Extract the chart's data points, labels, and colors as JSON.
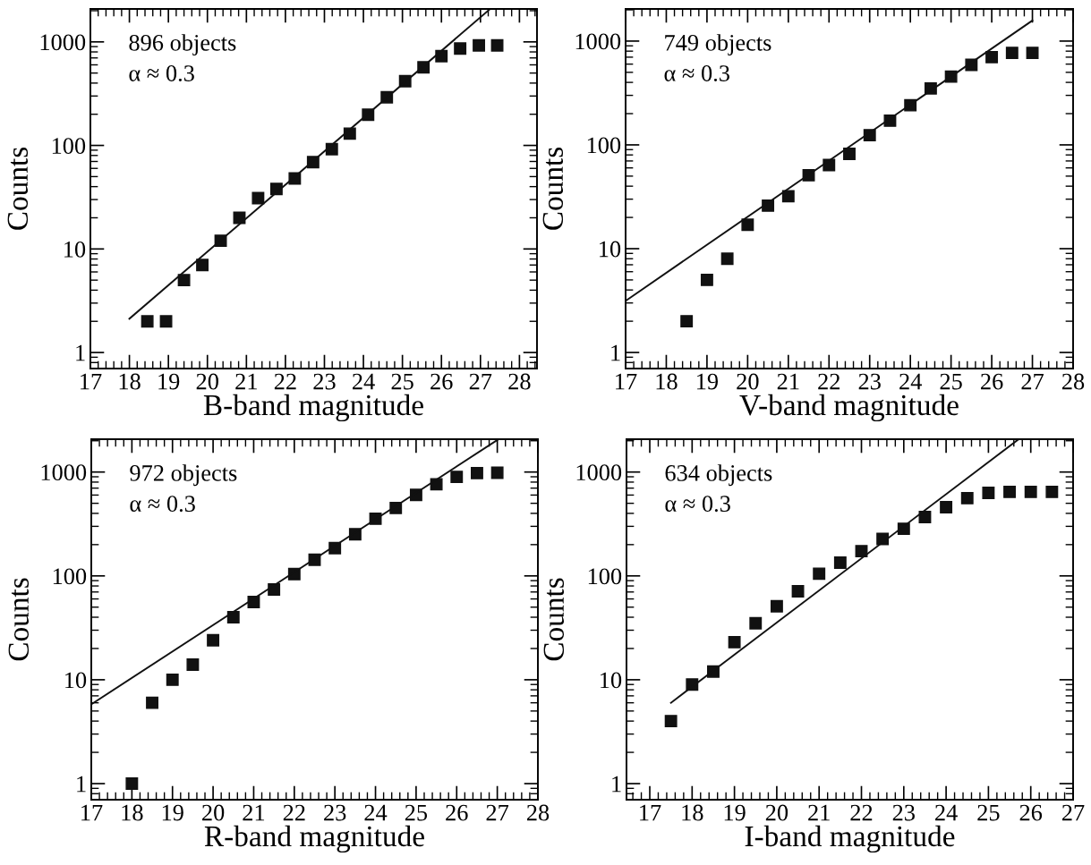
{
  "chart_data": [
    {
      "type": "scatter",
      "xlabel": "B-band magnitude",
      "ylabel": "Counts",
      "annotations": [
        "896 objects",
        "α ≈ 0.3"
      ],
      "log": "y",
      "xlim": [
        17,
        28.45
      ],
      "ylim": [
        0.7,
        2080
      ],
      "xticks": [
        17,
        18,
        19,
        20,
        21,
        22,
        23,
        24,
        25,
        26,
        27,
        28
      ],
      "yticks": [
        1,
        10,
        100,
        1000
      ],
      "grid": false,
      "legend": false,
      "series": [
        {
          "marker": "square",
          "color": "#111111",
          "x": [
            18.46,
            18.94,
            19.4,
            19.87,
            20.34,
            20.82,
            21.3,
            21.77,
            22.24,
            22.71,
            23.19,
            23.65,
            24.12,
            24.6,
            25.07,
            25.54,
            26.0,
            26.48,
            26.96,
            27.43
          ],
          "values": [
            2,
            2,
            5,
            7,
            12,
            20,
            31,
            38,
            48,
            69,
            92,
            130,
            198,
            292,
            417,
            568,
            728,
            863,
            925,
            925
          ]
        },
        {
          "type": "line",
          "color": "#111111",
          "x": [
            18.0,
            27.23
          ],
          "values": [
            2.12,
            2050
          ]
        }
      ]
    },
    {
      "type": "scatter",
      "xlabel": "V-band magnitude",
      "ylabel": "Counts",
      "annotations": [
        "749 objects",
        "α ≈ 0.3"
      ],
      "log": "y",
      "xlim": [
        17,
        28
      ],
      "ylim": [
        0.7,
        2040
      ],
      "xticks": [
        17,
        18,
        19,
        20,
        21,
        22,
        23,
        24,
        25,
        26,
        27,
        28
      ],
      "yticks": [
        1,
        10,
        100,
        1000
      ],
      "grid": false,
      "legend": false,
      "series": [
        {
          "marker": "square",
          "color": "#111111",
          "x": [
            18.5,
            19,
            19.5,
            20,
            20.5,
            21,
            21.5,
            22,
            22.5,
            23,
            23.5,
            24,
            24.5,
            25,
            25.5,
            26,
            26.5,
            27
          ],
          "values": [
            2,
            5,
            8,
            17,
            26,
            32,
            51,
            64,
            82,
            124,
            171,
            241,
            350,
            455,
            591,
            701,
            769,
            769
          ]
        },
        {
          "type": "line",
          "color": "#111111",
          "x": [
            17,
            27
          ],
          "values": [
            3.14,
            1578
          ]
        }
      ]
    },
    {
      "type": "scatter",
      "xlabel": "R-band magnitude",
      "ylabel": "Counts",
      "annotations": [
        "972 objects",
        "α ≈ 0.3"
      ],
      "log": "y",
      "xlim": [
        17,
        28
      ],
      "ylim": [
        0.7,
        2070
      ],
      "xticks": [
        17,
        18,
        19,
        20,
        21,
        22,
        23,
        24,
        25,
        26,
        27,
        28
      ],
      "yticks": [
        1,
        10,
        100,
        1000
      ],
      "grid": false,
      "legend": false,
      "series": [
        {
          "marker": "square",
          "color": "#111111",
          "x": [
            18,
            18.5,
            19,
            19.5,
            20,
            20.5,
            21,
            21.5,
            22,
            22.5,
            23,
            23.5,
            24,
            24.5,
            25,
            25.5,
            26,
            26.5,
            27
          ],
          "values": [
            1,
            6,
            10,
            14,
            24,
            40,
            56,
            74,
            104,
            143,
            185,
            252,
            355,
            451,
            602,
            762,
            897,
            977,
            984
          ]
        },
        {
          "type": "line",
          "color": "#111111",
          "x": [
            17,
            27
          ],
          "values": [
            5.8,
            2035
          ]
        }
      ]
    },
    {
      "type": "scatter",
      "xlabel": "I-band magnitude",
      "ylabel": "Counts",
      "annotations": [
        "634 objects",
        "α ≈ 0.3"
      ],
      "log": "y",
      "xlim": [
        16.45,
        27
      ],
      "ylim": [
        0.7,
        2070
      ],
      "xticks": [
        17,
        18,
        19,
        20,
        21,
        22,
        23,
        24,
        25,
        26,
        27
      ],
      "yticks": [
        1,
        10,
        100,
        1000
      ],
      "grid": false,
      "legend": false,
      "series": [
        {
          "marker": "square",
          "color": "#111111",
          "x": [
            17.5,
            18,
            18.5,
            19,
            19.5,
            20,
            20.5,
            21,
            21.5,
            22,
            22.5,
            23,
            23.5,
            24,
            24.5,
            25,
            25.5,
            26,
            26.5
          ],
          "values": [
            4,
            9,
            12,
            23,
            35,
            51,
            71,
            105,
            134,
            173,
            227,
            284,
            369,
            458,
            560,
            630,
            644,
            644,
            644
          ]
        },
        {
          "type": "line",
          "color": "#111111",
          "x": [
            17.5,
            25.7
          ],
          "values": [
            6.0,
            2050
          ]
        }
      ]
    }
  ]
}
